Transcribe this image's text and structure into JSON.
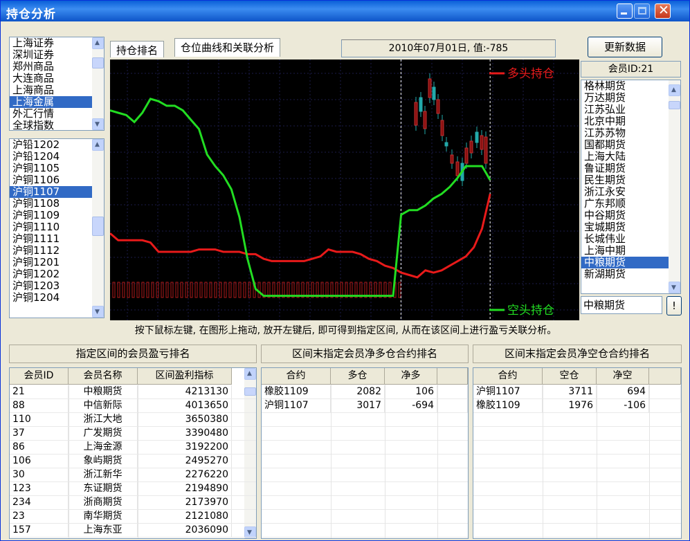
{
  "window": {
    "title": "持仓分析"
  },
  "markets": {
    "items": [
      "上海证券",
      "深圳证券",
      "郑州商品",
      "大连商品",
      "上海商品",
      "上海金属",
      "外汇行情",
      "全球指数"
    ],
    "selected": 5
  },
  "contracts": {
    "items": [
      "沪铅1202",
      "沪铅1204",
      "沪铜1105",
      "沪铜1106",
      "沪铜1107",
      "沪铜1108",
      "沪铜1109",
      "沪铜1110",
      "沪铜1111",
      "沪铜1112",
      "沪铜1201",
      "沪铜1202",
      "沪铜1203",
      "沪铜1204"
    ],
    "selected": 4
  },
  "tabs": [
    {
      "label": "持仓排名"
    },
    {
      "label": "仓位曲线和关联分析"
    }
  ],
  "date_value": "2010年07月01日, 值:-785",
  "update_button": "更新数据",
  "member_id_label": "会员ID:21",
  "members": {
    "items": [
      "格林期货",
      "万达期货",
      "江苏弘业",
      "北京中期",
      "江苏苏物",
      "国都期货",
      "上海大陆",
      "鲁证期货",
      "民生期货",
      "浙江永安",
      "广东邦顺",
      "中谷期货",
      "宝城期货",
      "长城伟业",
      "上海中期",
      "中粮期货",
      "新湖期货"
    ],
    "selected": 15
  },
  "selected_member": "中粮期货",
  "excl_button": "!",
  "chart_data": {
    "type": "line",
    "legend": [
      {
        "name": "多头持仓",
        "color": "#e81a1a"
      },
      {
        "name": "空头持仓",
        "color": "#22dd22"
      }
    ],
    "series": [
      {
        "name": "多头持仓",
        "color": "#e81a1a",
        "values": [
          0.28,
          0.25,
          0.25,
          0.25,
          0.25,
          0.24,
          0.2,
          0.2,
          0.2,
          0.2,
          0.2,
          0.21,
          0.21,
          0.21,
          0.2,
          0.2,
          0.2,
          0.19,
          0.19,
          0.17,
          0.16,
          0.16,
          0.16,
          0.16,
          0.16,
          0.17,
          0.18,
          0.21,
          0.2,
          0.2,
          0.2,
          0.19,
          0.17,
          0.16,
          0.14,
          0.13,
          0.11,
          0.1,
          0.09,
          0.12,
          0.11,
          0.12,
          0.14,
          0.16,
          0.18,
          0.22,
          0.3,
          0.45
        ]
      },
      {
        "name": "空头持仓",
        "color": "#22dd22",
        "values": [
          0.81,
          0.8,
          0.79,
          0.76,
          0.8,
          0.86,
          0.85,
          0.83,
          0.83,
          0.81,
          0.77,
          0.73,
          0.62,
          0.57,
          0.53,
          0.47,
          0.35,
          0.17,
          0.04,
          0.01,
          0.01,
          0.01,
          0.01,
          0.01,
          0.01,
          0.01,
          0.01,
          0.01,
          0.01,
          0.01,
          0.01,
          0.01,
          0.01,
          0.01,
          0.01,
          0.01,
          0.36,
          0.38,
          0.38,
          0.4,
          0.43,
          0.45,
          0.48,
          0.52,
          0.57,
          0.57,
          0.57,
          0.51
        ]
      }
    ],
    "marker_positions": [
      0.62,
      0.81
    ]
  },
  "hint": "按下鼠标左键, 在图形上拖动, 放开左键后, 即可得到指定区间, 从而在该区间上进行盈亏关联分析。",
  "section1": {
    "title": "指定区间的会员盈亏排名",
    "headers": [
      "会员ID",
      "会员名称",
      "区间盈利指标"
    ],
    "rows": [
      [
        "21",
        "中粮期货",
        "4213130"
      ],
      [
        "88",
        "中信新际",
        "4013650"
      ],
      [
        "110",
        "浙江大地",
        "3650380"
      ],
      [
        "37",
        "广发期货",
        "3390480"
      ],
      [
        "86",
        "上海金源",
        "3192200"
      ],
      [
        "106",
        "象屿期货",
        "2495270"
      ],
      [
        "30",
        "浙江新华",
        "2276220"
      ],
      [
        "123",
        "东证期货",
        "2194890"
      ],
      [
        "234",
        "浙商期货",
        "2173970"
      ],
      [
        "23",
        "南华期货",
        "2121080"
      ],
      [
        "157",
        "上海东亚",
        "2036090"
      ]
    ]
  },
  "section2": {
    "title": "区间末指定会员净多仓合约排名",
    "headers": [
      "合约",
      "多仓",
      "净多"
    ],
    "rows": [
      [
        "橡胶1109",
        "2082",
        "106"
      ],
      [
        "沪铜1107",
        "3017",
        "-694"
      ]
    ]
  },
  "section3": {
    "title": "区间末指定会员净空仓合约排名",
    "headers": [
      "合约",
      "空仓",
      "净空"
    ],
    "rows": [
      [
        "沪铜1107",
        "3711",
        "694"
      ],
      [
        "橡胶1109",
        "1976",
        "-106"
      ]
    ]
  },
  "colors": {
    "long": "#e81a1a",
    "short": "#22dd22",
    "selection": "#316ac5"
  }
}
